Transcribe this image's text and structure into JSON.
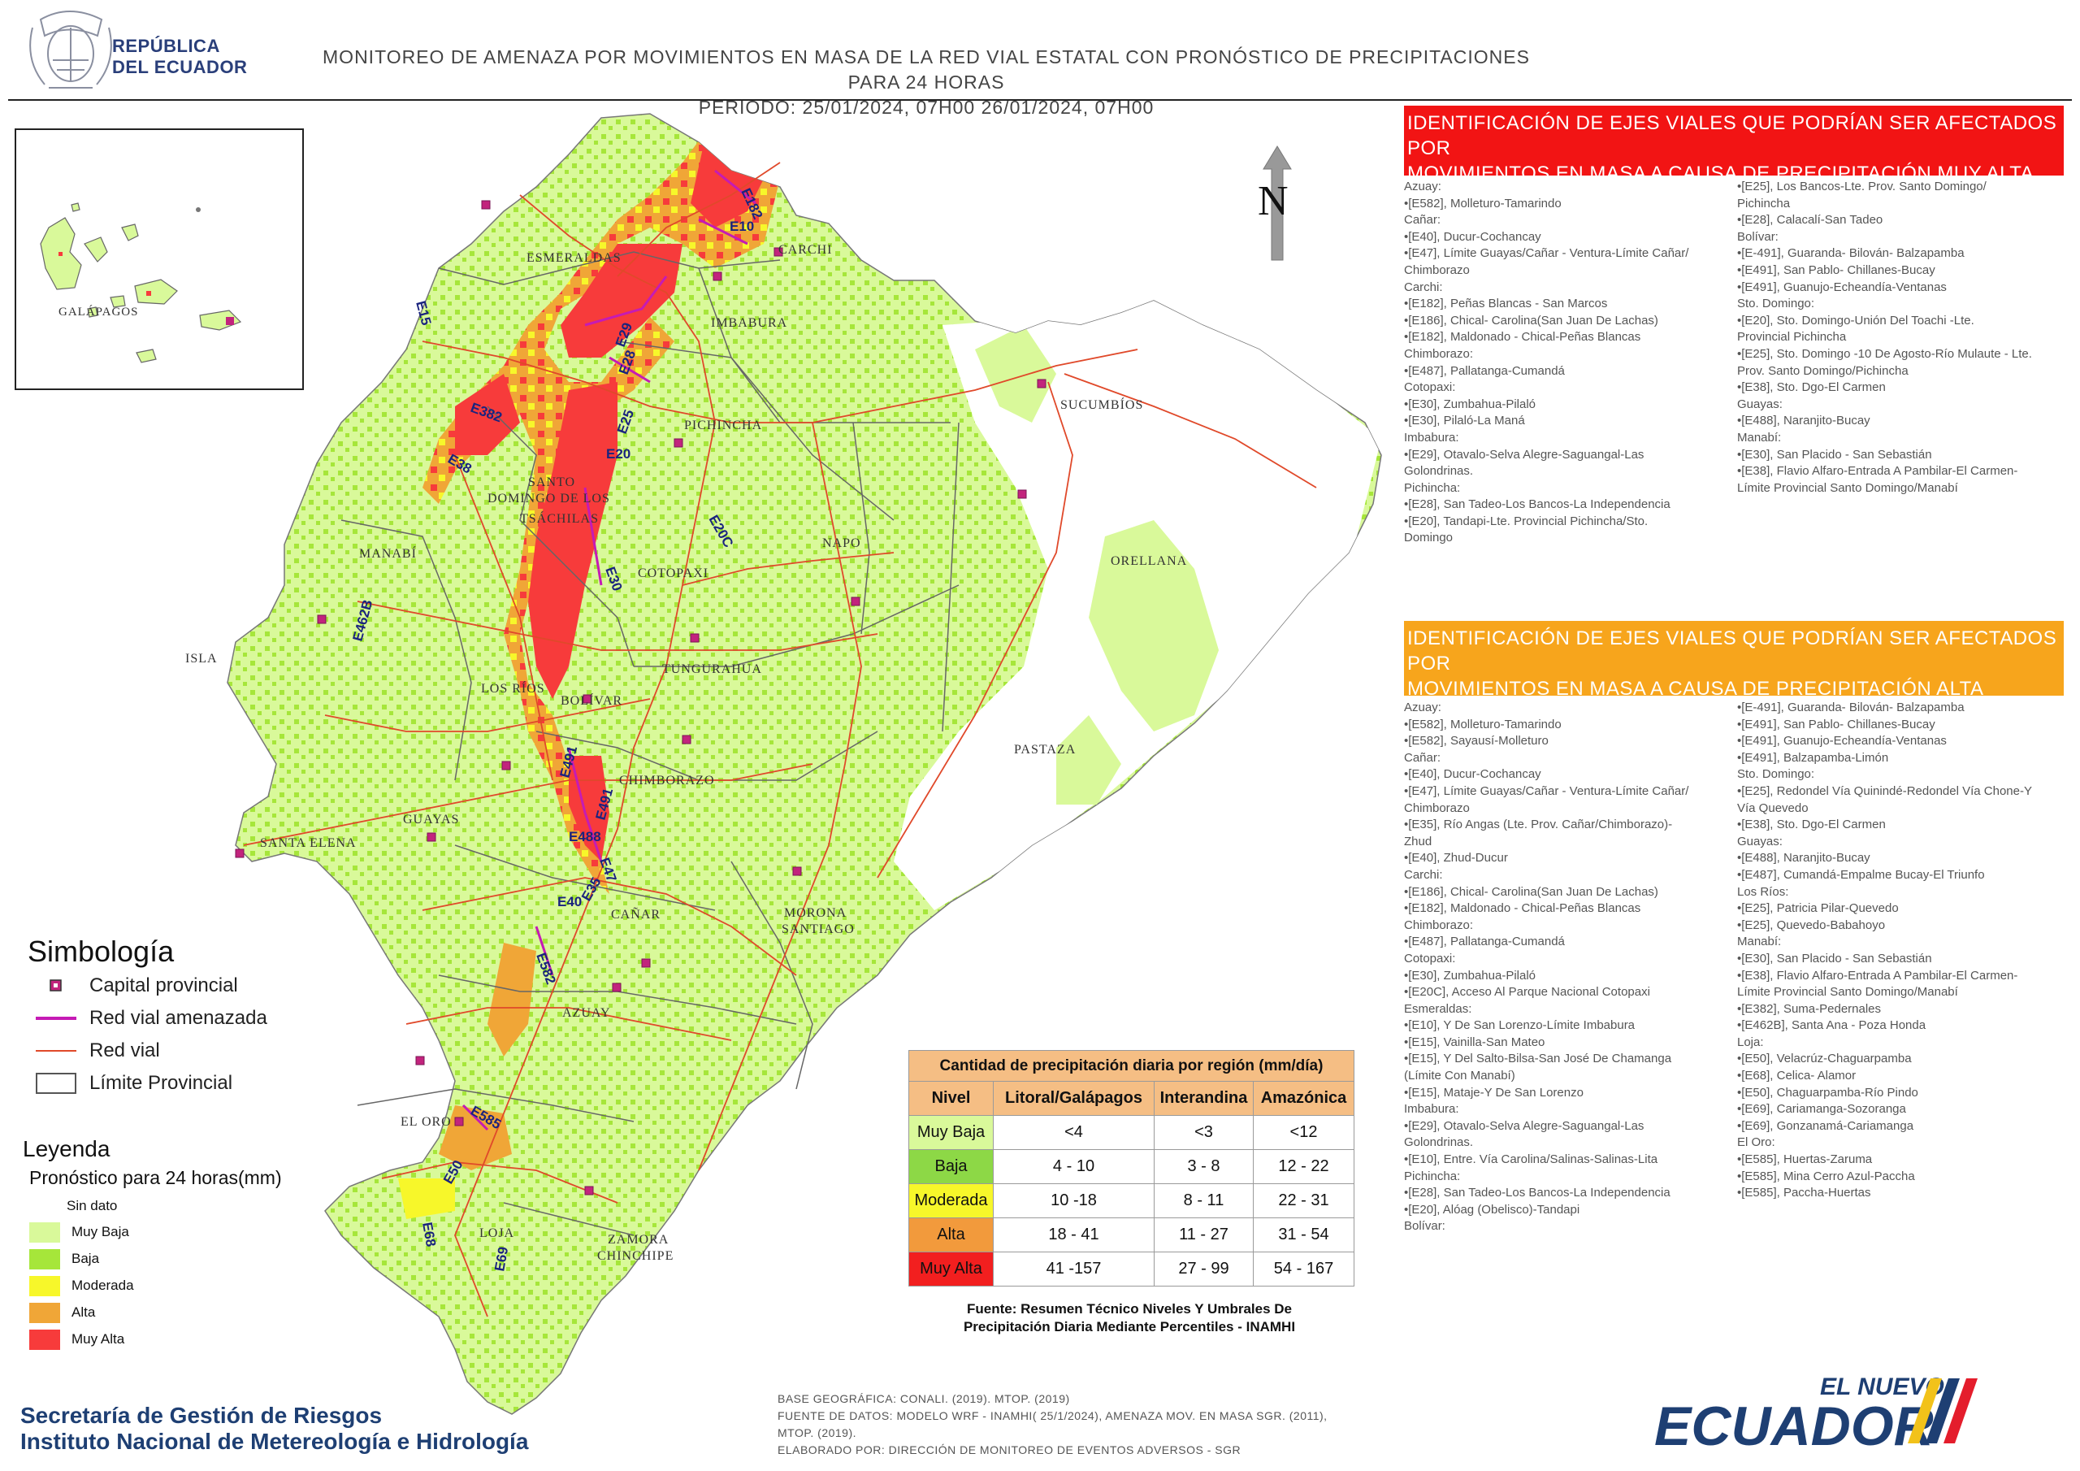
{
  "header": {
    "country_line1": "REPÚBLICA",
    "country_line2": "DEL ECUADOR",
    "title_line1": "MONITOREO DE AMENAZA POR MOVIMIENTOS EN MASA DE LA RED VIAL  ESTATAL  CON PRONÓSTICO  DE  PRECIPITACIONES PARA 24 HORAS",
    "title_line2": "PERIODO: 25/01/2024, 07H00 26/01/2024, 07H00"
  },
  "map": {
    "north_label": "N",
    "inset_label": "GALÁPAGOS",
    "provinces": [
      "ESMERALDAS",
      "CARCHI",
      "IMBABURA",
      "SUCUMBÍOS",
      "PICHINCHA",
      "SANTO",
      "DOMINGO DE LOS",
      "TSÁCHILAS",
      "MANABÍ",
      "NAPO",
      "ORELLANA",
      "COTOPAXI",
      "ISLA",
      "TUNGURAHUA",
      "LOS RÍOS",
      "BOLÍVAR",
      "PASTAZA",
      "CHIMBORAZO",
      "GUAYAS",
      "SANTA ELENA",
      "CAÑAR",
      "MORONA",
      "SANTIAGO",
      "AZUAY",
      "EL ORO",
      "LOJA",
      "ZAMORA",
      "CHINCHIPE"
    ],
    "roads": [
      "E182",
      "E10",
      "E15",
      "E29",
      "E28",
      "E382",
      "E25",
      "E20",
      "E38",
      "E20C",
      "E30",
      "E462B",
      "E491",
      "E491",
      "E488",
      "E47",
      "E40",
      "E35",
      "E582",
      "E585",
      "E50",
      "E68",
      "E69"
    ]
  },
  "panel_very_high": {
    "title_line1": "IDENTIFICACIÓN DE EJES VIALES QUE PODRÍAN SER AFECTADOS POR",
    "title_line2": "MOVIMIENTOS EN MASA A CAUSA DE PRECIPITACIÓN MUY ALTA",
    "col1": [
      "Azuay:",
      "•[E582], Molleturo-Tamarindo",
      "Cañar:",
      "•[E40], Ducur-Cochancay",
      "•[E47], Límite Guayas/Cañar - Ventura-Límite Cañar/",
      "Chimborazo",
      "Carchi:",
      "•[E182], Peñas Blancas - San Marcos",
      "•[E186], Chical- Carolina(San Juan De Lachas)",
      "•[E182], Maldonado - Chical-Peñas Blancas",
      "Chimborazo:",
      "•[E487], Pallatanga-Cumandá",
      "Cotopaxi:",
      "•[E30], Zumbahua-Pilaló",
      "•[E30], Pilaló-La Maná",
      "Imbabura:",
      "•[E29], Otavalo-Selva Alegre-Saguangal-Las",
      "Golondrinas.",
      "Pichincha:",
      "•[E28], San Tadeo-Los Bancos-La Independencia",
      "•[E20], Tandapi-Lte. Provincial Pichincha/Sto.",
      "Domingo"
    ],
    "col2": [
      "•[E25], Los Bancos-Lte. Prov. Santo Domingo/",
      "Pichincha",
      "•[E28], Calacalí-San Tadeo",
      "Bolívar:",
      "•[E-491], Guaranda- Bilován- Balzapamba",
      "•[E491], San Pablo- Chillanes-Bucay",
      "•[E491], Guanujo-Echeandía-Ventanas",
      "Sto. Domingo:",
      "•[E20], Sto. Domingo-Unión Del Toachi -Lte.",
      "Provincial Pichincha",
      "•[E25], Sto. Domingo -10 De Agosto-Río Mulaute - Lte.",
      "Prov. Santo Domingo/Pichincha",
      "•[E38], Sto. Dgo-El Carmen",
      "Guayas:",
      "•[E488], Naranjito-Bucay",
      "Manabí:",
      "•[E30], San Placido - San Sebastián",
      "•[E38], Flavio Alfaro-Entrada A Pambilar-El Carmen-",
      "Límite Provincial Santo Domingo/Manabí"
    ]
  },
  "panel_high": {
    "title_line1": "IDENTIFICACIÓN DE EJES VIALES QUE PODRÍAN SER AFECTADOS POR",
    "title_line2": "MOVIMIENTOS EN MASA A CAUSA DE PRECIPITACIÓN  ALTA",
    "col1": [
      "Azuay:",
      "•[E582], Molleturo-Tamarindo",
      "•[E582], Sayausí-Molleturo",
      "Cañar:",
      "•[E40], Ducur-Cochancay",
      "•[E47], Límite Guayas/Cañar - Ventura-Límite Cañar/",
      "Chimborazo",
      "•[E35], Río Angas (Lte. Prov. Cañar/Chimborazo)-",
      "Zhud",
      "•[E40], Zhud-Ducur",
      "Carchi:",
      "•[E186], Chical- Carolina(San Juan De Lachas)",
      "•[E182], Maldonado - Chical-Peñas Blancas",
      "Chimborazo:",
      "•[E487], Pallatanga-Cumandá",
      "Cotopaxi:",
      "•[E30], Zumbahua-Pilaló",
      "•[E20C], Acceso Al Parque Nacional Cotopaxi",
      "Esmeraldas:",
      "•[E10], Y De San Lorenzo-Límite Imbabura",
      "•[E15], Vainilla-San Mateo",
      "•[E15], Y Del Salto-Bilsa-San José De Chamanga",
      "(Límite Con Manabí)",
      "•[E15], Mataje-Y De San Lorenzo",
      "Imbabura:",
      "•[E29], Otavalo-Selva Alegre-Saguangal-Las",
      "Golondrinas.",
      "•[E10], Entre. Vía Carolina/Salinas-Salinas-Lita",
      "Pichincha:",
      "•[E28], San Tadeo-Los Bancos-La Independencia",
      "•[E20], Alóag (Obelisco)-Tandapi",
      "Bolívar:"
    ],
    "col2": [
      "•[E-491], Guaranda- Bilován- Balzapamba",
      "•[E491], San Pablo- Chillanes-Bucay",
      "•[E491], Guanujo-Echeandía-Ventanas",
      "•[E491], Balzapamba-Limón",
      "Sto. Domingo:",
      "•[E25], Redondel Vía Quinindé-Redondel Vía Chone-Y",
      "Vía Quevedo",
      "•[E38], Sto. Dgo-El Carmen",
      "Guayas:",
      "•[E488], Naranjito-Bucay",
      "•[E487], Cumandá-Empalme Bucay-El Triunfo",
      "Los Ríos:",
      "•[E25], Patricia Pilar-Quevedo",
      "•[E25], Quevedo-Babahoyo",
      "Manabí:",
      "•[E30], San Placido - San Sebastián",
      "•[E38], Flavio Alfaro-Entrada A Pambilar-El Carmen-",
      "Límite Provincial Santo Domingo/Manabí",
      "•[E382], Suma-Pedernales",
      "•[E462B], Santa Ana - Poza Honda",
      "Loja:",
      "•[E50], Velacrúz-Chaguarpamba",
      "•[E68], Celica- Alamor",
      "•[E50], Chaguarpamba-Río Pindo",
      "•[E69], Cariamanga-Sozoranga",
      "•[E69], Gonzanamá-Cariamanga",
      "El Oro:",
      "•[E585], Huertas-Zaruma",
      "•[E585], Mina Cerro Azul-Paccha",
      "•[E585], Paccha-Huertas"
    ]
  },
  "symbology": {
    "title": "Simbología",
    "items": [
      "Capital provincial",
      "Red vial amenazada",
      "Red vial",
      "Límite Provincial"
    ]
  },
  "legend": {
    "title": "Leyenda",
    "subtitle": "Pronóstico para 24 horas(mm)",
    "items": [
      "Sin dato",
      "Muy Baja",
      "Baja",
      "Moderada",
      "Alta",
      "Muy Alta"
    ]
  },
  "colors": {
    "sin_dato": "#ffffff",
    "muy_baja": "#d9f99a",
    "baja": "#a6e63a",
    "moderada": "#f7f72a",
    "alta": "#f0a637",
    "muy_alta": "#f73b3b",
    "road": "#e0492a",
    "threatened_road": "#c51bb5",
    "capital": "#c2247d",
    "panel_very_high": "#f21414",
    "panel_high": "#f7a51c",
    "table_header": "#f5be84",
    "brand_blue": "#1e3f73"
  },
  "table": {
    "title": "Cantidad de precipitación diaria por región (mm/día)",
    "headers": [
      "Nivel",
      "Litoral/Galápagos",
      "Interandina",
      "Amazónica"
    ],
    "rows": [
      {
        "level": "Muy Baja",
        "litoral": "<4",
        "interandina": "<3",
        "amazonica": "<12"
      },
      {
        "level": "Baja",
        "litoral": "4 - 10",
        "interandina": "3 - 8",
        "amazonica": "12 - 22"
      },
      {
        "level": "Moderada",
        "litoral": "10 -18",
        "interandina": "8 - 11",
        "amazonica": "22 - 31"
      },
      {
        "level": "Alta",
        "litoral": "18 - 41",
        "interandina": "11 - 27",
        "amazonica": "31 - 54"
      },
      {
        "level": "Muy Alta",
        "litoral": "41 -157",
        "interandina": "27 - 99",
        "amazonica": "54 - 167"
      }
    ],
    "source_line1": "Fuente: Resumen Técnico Niveles Y Umbrales De",
    "source_line2": "Precipitación Diaria Mediante Percentiles - INAMHI"
  },
  "footer": {
    "org_line1": "Secretaría de Gestión de Riesgos",
    "org_line2": "Instituto Nacional de Metereología e Hidrología",
    "credits_line1": "BASE GEOGRÁFICA: CONALI. (2019). MTOP. (2019)",
    "credits_line2": "FUENTE DE DATOS: MODELO WRF - INAMHI( 25/1/2024),  AMENAZA MOV. EN MASA SGR. (2011),",
    "credits_line3": "MTOP. (2019).",
    "credits_line4": "ELABORADO POR: DIRECCIÓN DE MONITOREO DE EVENTOS ADVERSOS - SGR",
    "brand_line1": "EL NUEVO",
    "brand_line2": "ECUADOR"
  }
}
